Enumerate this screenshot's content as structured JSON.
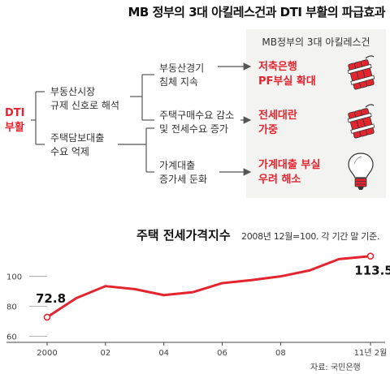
{
  "headline": "MB 정부의 3대 아킬레스건과 DTI 부활의 파급효과",
  "diagram": {
    "panel_title": "MB정부의 3대 아킬레스건",
    "root": "DTI\n부활",
    "branch1": "부동산시장\n규제 신호로 해석",
    "branch2": "주택담보대출\n수요 억제",
    "leaf1": "부동산경기\n침체 지속",
    "leaf2": "주택구매수요 감소\n및 전세수요 증가",
    "leaf3": "가계대출\n증가세 둔화",
    "outcome1": "저축은행\nPF부실 확대",
    "outcome2": "전세대란\n가중",
    "outcome3": "가계대출 부실\n우려 해소",
    "icons": [
      "dynamite-icon",
      "dynamite-icon",
      "lightbulb-icon"
    ],
    "accent_color": "#e32530"
  },
  "chart_title": "주택 전세가격지수",
  "chart_subtitle": "2008년 12월=100. 각 기간 말 기준.",
  "source": "자료: 국민은행",
  "chart_data": {
    "type": "line",
    "x": [
      2000,
      2001,
      2002,
      2003,
      2004,
      2005,
      2006,
      2007,
      2008,
      2009,
      2010,
      2011.08
    ],
    "values": [
      72.8,
      85.5,
      93.5,
      91.5,
      87.5,
      89.5,
      95.5,
      97.5,
      100,
      104,
      111.5,
      113.5
    ],
    "x_tick_labels": [
      "2000",
      "02",
      "04",
      "06",
      "08",
      "11년 2월"
    ],
    "x_tick_values": [
      2000,
      2002,
      2004,
      2006,
      2008,
      2011.08
    ],
    "y_ticks": [
      60,
      80,
      100
    ],
    "ylim": [
      56,
      122
    ],
    "annotations": [
      {
        "label": "72.8",
        "x": 2000
      },
      {
        "label": "113.5",
        "x": 2011.08
      }
    ],
    "color": "#e32530",
    "grid": false
  }
}
